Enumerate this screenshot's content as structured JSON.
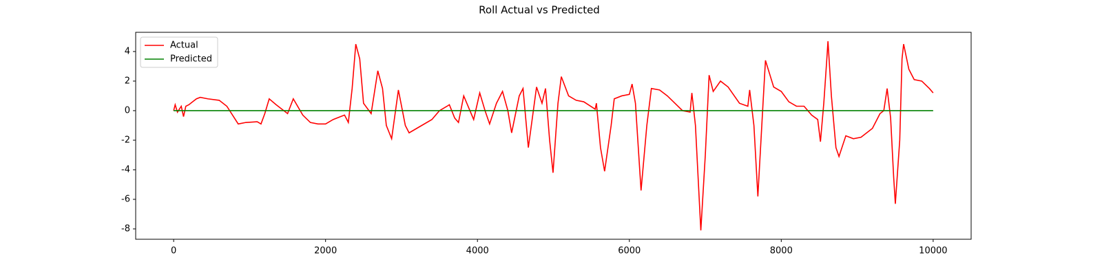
{
  "chart_data": {
    "type": "line",
    "title": "Roll Actual vs Predicted",
    "xlim": [
      -500,
      10500
    ],
    "xticks": [
      0,
      2000,
      4000,
      6000,
      8000,
      10000
    ],
    "ylim": [
      -8.7,
      5.3
    ],
    "yticks": [
      -8,
      -6,
      -4,
      -2,
      0,
      2,
      4
    ],
    "grid": false,
    "legend": "upper left",
    "series": [
      {
        "name": "Actual",
        "color": "#ff0000",
        "x": [
          0,
          20,
          50,
          100,
          130,
          160,
          200,
          250,
          300,
          350,
          450,
          600,
          700,
          800,
          850,
          950,
          1100,
          1150,
          1200,
          1258,
          1350,
          1500,
          1575,
          1700,
          1800,
          1900,
          2000,
          2100,
          2200,
          2250,
          2300,
          2350,
          2398,
          2450,
          2500,
          2600,
          2688,
          2750,
          2800,
          2870,
          2959,
          3050,
          3100,
          3200,
          3400,
          3500,
          3600,
          3630,
          3700,
          3750,
          3819,
          3950,
          4030,
          4100,
          4160,
          4250,
          4330,
          4400,
          4450,
          4550,
          4600,
          4670,
          4778,
          4850,
          4896,
          4950,
          4995,
          5060,
          5104,
          5200,
          5300,
          5400,
          5550,
          5566,
          5620,
          5674,
          5760,
          5801,
          5900,
          6000,
          6036,
          6080,
          6154,
          6230,
          6290,
          6398,
          6500,
          6600,
          6700,
          6800,
          6823,
          6870,
          6941,
          7000,
          7050,
          7104,
          7200,
          7300,
          7450,
          7560,
          7584,
          7640,
          7692,
          7760,
          7792,
          7900,
          8000,
          8100,
          8200,
          8300,
          8400,
          8480,
          8516,
          8560,
          8600,
          8615,
          8660,
          8720,
          8760,
          8850,
          8950,
          9050,
          9200,
          9300,
          9350,
          9394,
          9440,
          9480,
          9502,
          9560,
          9590,
          9611,
          9680,
          9750,
          9850,
          9950,
          10000
        ],
        "values": [
          0,
          0.4,
          -0.1,
          0.3,
          -0.4,
          0.3,
          0.4,
          0.6,
          0.8,
          0.9,
          0.8,
          0.7,
          0.3,
          -0.5,
          -0.9,
          -0.8,
          -0.75,
          -0.9,
          -0.2,
          0.8,
          0.4,
          -0.2,
          0.8,
          -0.3,
          -0.8,
          -0.9,
          -0.9,
          -0.6,
          -0.4,
          -0.3,
          -0.8,
          1.5,
          4.5,
          3.5,
          0.5,
          -0.2,
          2.7,
          1.5,
          -1.0,
          -1.9,
          1.4,
          -1.0,
          -1.5,
          -1.2,
          -0.6,
          0,
          0.3,
          0.4,
          -0.5,
          -0.8,
          1.0,
          -0.6,
          1.2,
          0,
          -0.9,
          0.5,
          1.3,
          0,
          -1.5,
          1.0,
          1.5,
          -2.5,
          1.6,
          0.5,
          1.5,
          -2.0,
          -4.2,
          0.5,
          2.3,
          1.0,
          0.7,
          0.6,
          0.1,
          0.5,
          -2.5,
          -4.1,
          -1.0,
          0.8,
          1.0,
          1.1,
          1.8,
          0.5,
          -5.4,
          -1.0,
          1.5,
          1.4,
          1.0,
          0.5,
          0.0,
          -0.1,
          1.2,
          -1.0,
          -8.1,
          -3.0,
          2.4,
          1.3,
          2.0,
          1.6,
          0.5,
          0.3,
          1.4,
          -1.0,
          -5.8,
          0.5,
          3.4,
          1.6,
          1.3,
          0.6,
          0.3,
          0.3,
          -0.3,
          -0.6,
          -2.1,
          0.5,
          3.5,
          4.7,
          1.0,
          -2.5,
          -3.1,
          -1.7,
          -1.9,
          -1.8,
          -1.2,
          -0.2,
          0.0,
          1.5,
          -0.5,
          -4.5,
          -6.3,
          -2.0,
          3.5,
          4.5,
          2.8,
          2.1,
          2.0,
          1.5,
          1.2
        ]
      },
      {
        "name": "Predicted",
        "color": "#008000",
        "x": [
          0,
          10000
        ],
        "values": [
          0,
          0
        ]
      }
    ]
  }
}
